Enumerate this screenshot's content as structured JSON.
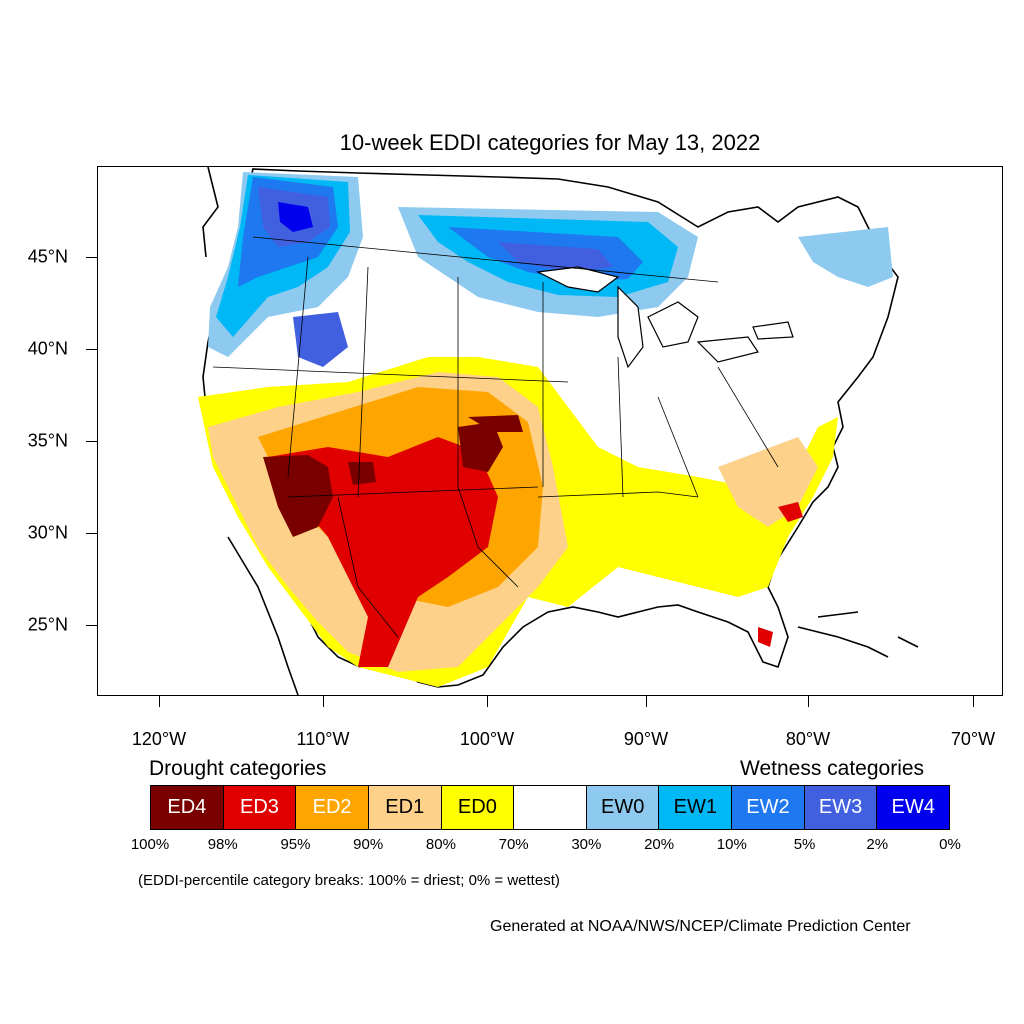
{
  "title": "10-week EDDI categories for May 13, 2022",
  "axes": {
    "lat_labels": [
      "45°N",
      "40°N",
      "35°N",
      "30°N",
      "25°N"
    ],
    "lon_labels": [
      "120°W",
      "110°W",
      "100°W",
      "90°W",
      "80°W",
      "70°W"
    ]
  },
  "legend": {
    "drought_heading": "Drought categories",
    "wetness_heading": "Wetness categories",
    "categories": [
      {
        "label": "ED4",
        "color": "#7a0000",
        "text_color": "#ffffff"
      },
      {
        "label": "ED3",
        "color": "#e00000",
        "text_color": "#ffffff"
      },
      {
        "label": "ED2",
        "color": "#ffa500",
        "text_color": "#ffffff"
      },
      {
        "label": "ED1",
        "color": "#fdd18a",
        "text_color": "#000000"
      },
      {
        "label": "ED0",
        "color": "#ffff00",
        "text_color": "#000000"
      },
      {
        "label": "",
        "color": "#ffffff",
        "text_color": "#000000"
      },
      {
        "label": "EW0",
        "color": "#8ecaf0",
        "text_color": "#000000"
      },
      {
        "label": "EW1",
        "color": "#00b8f5",
        "text_color": "#000000"
      },
      {
        "label": "EW2",
        "color": "#1e78f0",
        "text_color": "#ffffff"
      },
      {
        "label": "EW3",
        "color": "#4060e0",
        "text_color": "#ffffff"
      },
      {
        "label": "EW4",
        "color": "#0000ee",
        "text_color": "#ffffff"
      }
    ],
    "percent_breaks": [
      "100%",
      "98%",
      "95%",
      "90%",
      "80%",
      "70%",
      "30%",
      "20%",
      "10%",
      "5%",
      "2%",
      "0%"
    ]
  },
  "note": "(EDDI-percentile category breaks: 100% = driest; 0% = wettest)",
  "credit": "Generated at NOAA/NWS/NCEP/Climate Prediction Center"
}
